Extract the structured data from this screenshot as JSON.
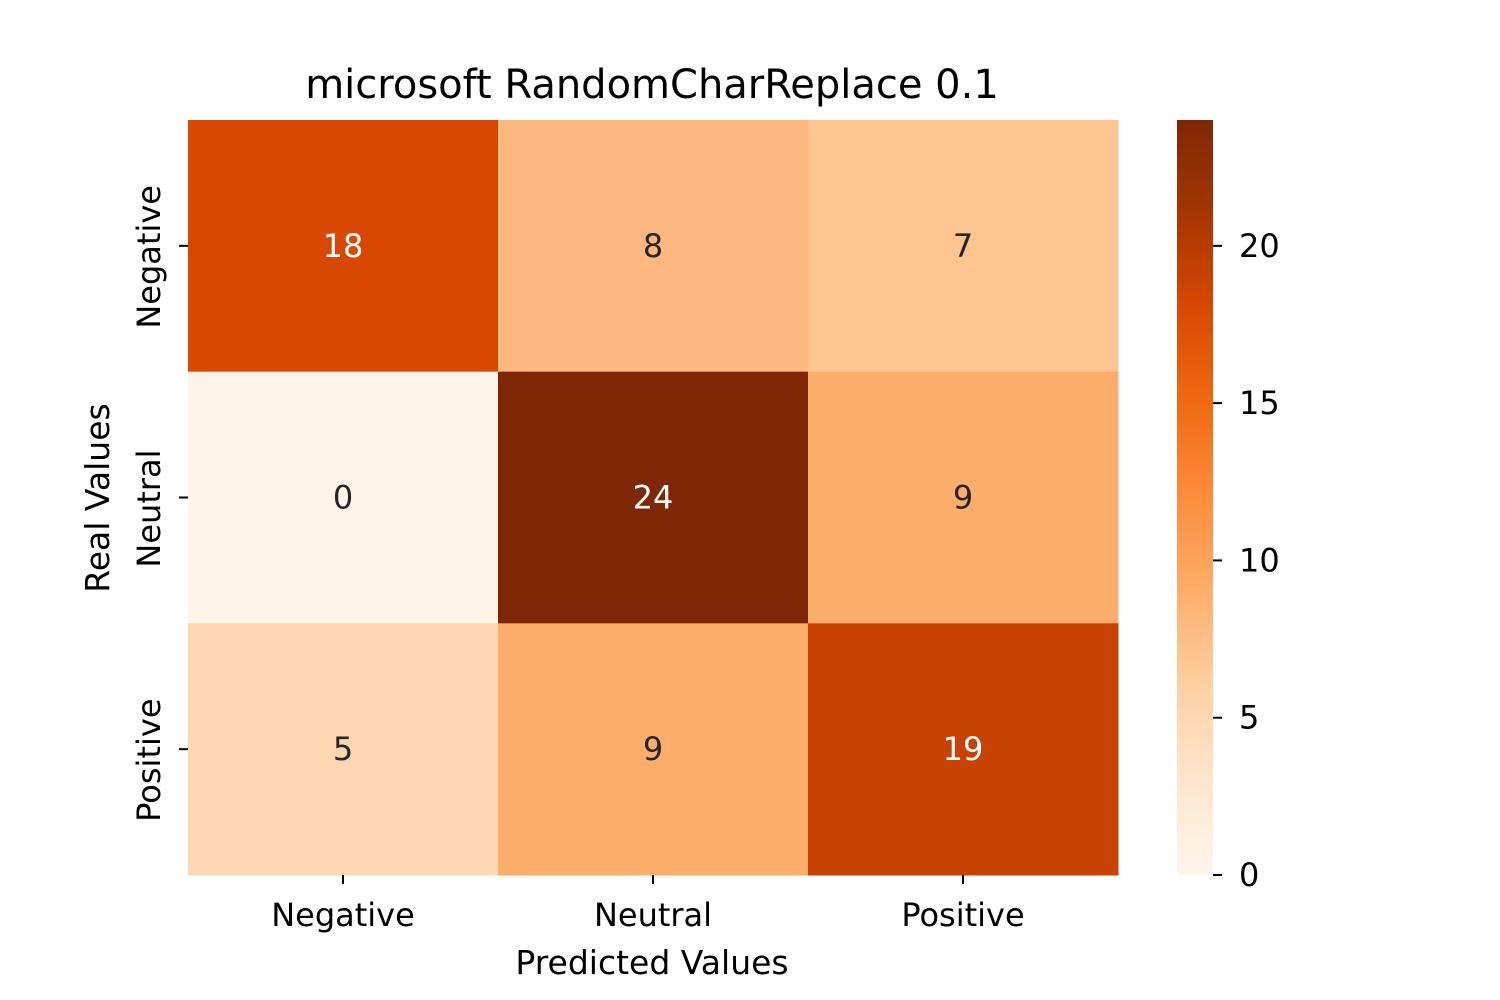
{
  "chart_data": {
    "type": "heatmap",
    "title": "microsoft RandomCharReplace 0.1",
    "xlabel": "Predicted Values",
    "ylabel": "Real Values",
    "x_categories": [
      "Negative",
      "Neutral",
      "Positive"
    ],
    "y_categories": [
      "Negative",
      "Neutral",
      "Positive"
    ],
    "values": [
      [
        18,
        8,
        7
      ],
      [
        0,
        24,
        9
      ],
      [
        5,
        9,
        19
      ]
    ],
    "colorbar": {
      "colormap": "Oranges",
      "range": [
        0,
        24
      ],
      "ticks": [
        0,
        5,
        10,
        15,
        20
      ],
      "low_color": "#fff5eb",
      "high_color": "#7f2704"
    },
    "annotations": true,
    "grid": false
  }
}
